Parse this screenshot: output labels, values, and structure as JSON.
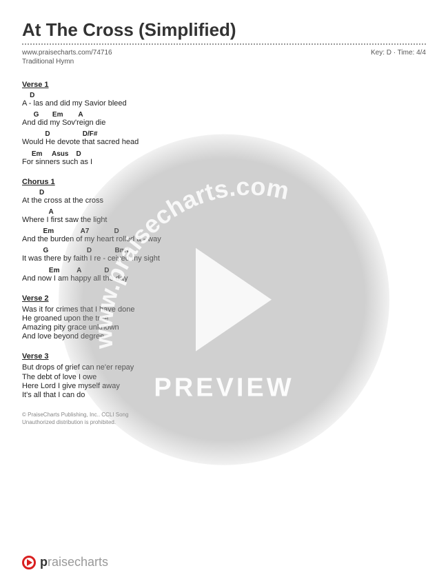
{
  "title": "At The Cross (Simplified)",
  "meta": {
    "url": "www.praisecharts.com/74716",
    "key_time": "Key: D · Time: 4/4",
    "subtitle": "Traditional Hymn"
  },
  "sections": [
    {
      "title": "Verse 1",
      "lines": [
        {
          "chords": "    D",
          "lyric": "A - las and did my Savior bleed"
        },
        {
          "chords": "      G       Em        A",
          "lyric": "And did my Sov'reign die"
        },
        {
          "chords": "            D                 D/F#",
          "lyric": "Would He devote that sacred head"
        },
        {
          "chords": "     Em     Asus    D",
          "lyric": "For sinners such as I"
        }
      ]
    },
    {
      "title": "Chorus 1",
      "lines": [
        {
          "chords": "         D",
          "lyric": "At the cross at the cross"
        },
        {
          "chords": "              A",
          "lyric": "Where I first saw the light"
        },
        {
          "chords": "           Em              A7             D",
          "lyric": "And the burden of my heart rolled a - way"
        },
        {
          "chords": "           G                    D            Bm7",
          "lyric": "It was there by faith I re - ceived my sight"
        },
        {
          "chords": "              Em         A            D",
          "lyric": "And now I am happy all the day"
        }
      ]
    },
    {
      "title": "Verse 2",
      "lines": [
        {
          "chords": "",
          "lyric": "Was it for crimes that I have done"
        },
        {
          "chords": "",
          "lyric": "He groaned upon the tree"
        },
        {
          "chords": "",
          "lyric": "Amazing pity grace unknown"
        },
        {
          "chords": "",
          "lyric": "And love beyond degree"
        }
      ]
    },
    {
      "title": "Verse 3",
      "lines": [
        {
          "chords": "",
          "lyric": "But drops of grief can ne'er repay"
        },
        {
          "chords": "",
          "lyric": "The debt of love I owe"
        },
        {
          "chords": "",
          "lyric": "Here Lord I give myself away"
        },
        {
          "chords": "",
          "lyric": "It's all that I can do"
        }
      ]
    }
  ],
  "copyright": {
    "line1": "© PraiseCharts Publishing, Inc.. CCLI Song",
    "line2": "Unauthorized distribution is prohibited."
  },
  "watermark": {
    "url_text": "www.praisecharts.com",
    "preview": "PREVIEW",
    "circle_color": "rgba(150,150,150,0.45)",
    "play_color": "rgba(255,255,255,0.85)"
  },
  "footer": {
    "brand_bold": "p",
    "brand_light": "raisecharts"
  }
}
